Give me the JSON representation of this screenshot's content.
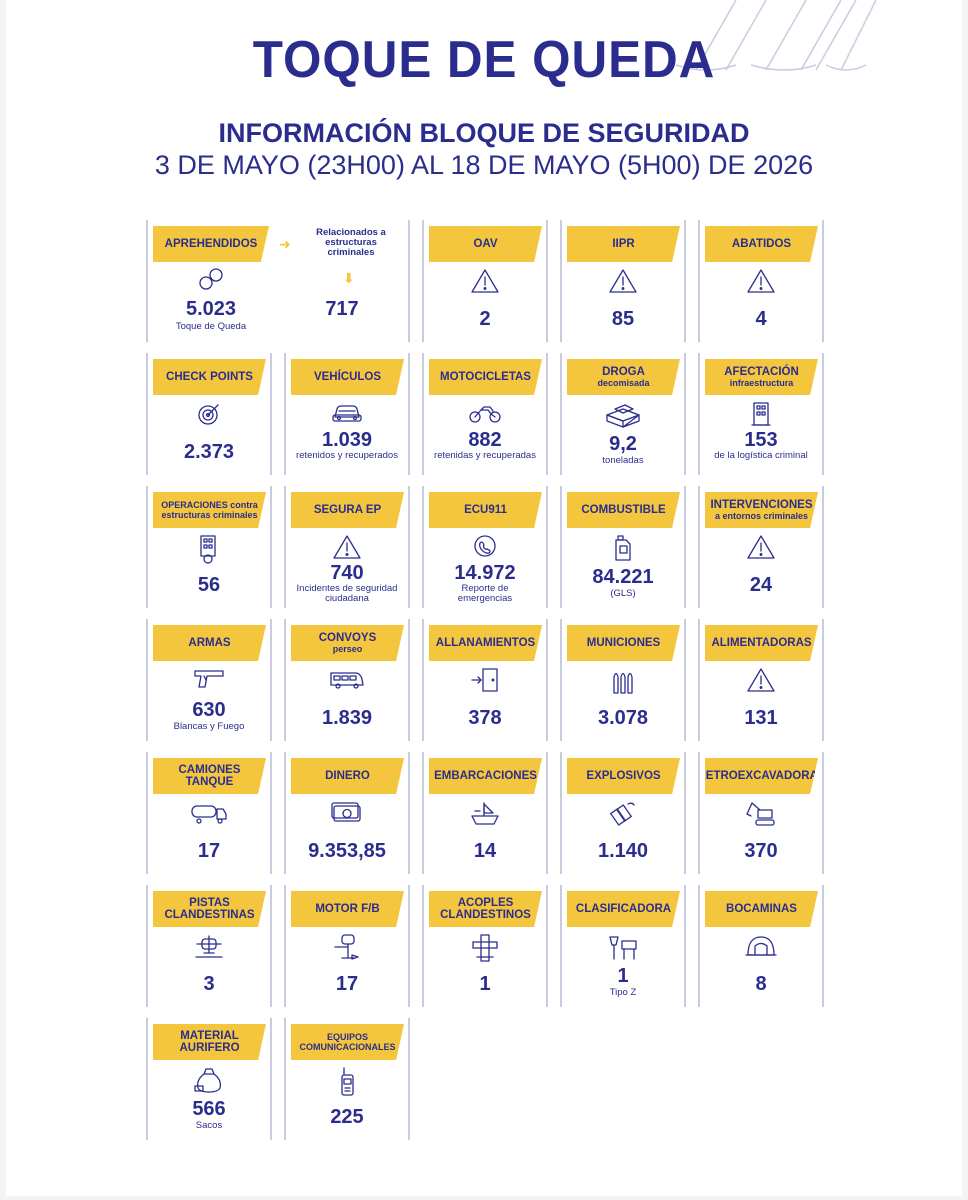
{
  "header": {
    "title": "TOQUE DE QUEDA",
    "subtitle": "INFORMACIÓN BLOQUE DE SEGURIDAD",
    "date_range": "3 DE MAYO (23H00) AL 18 DE MAYO (5H00) DE 2026"
  },
  "colors": {
    "accent": "#f4c63d",
    "primary": "#2b2d8e",
    "border": "#c9cbe0"
  },
  "aprehendidos": {
    "label": "APREHENDIDOS",
    "value": "5.023",
    "caption": "Toque de Queda",
    "related_label": "Relacionados a estructuras criminales",
    "related_value": "717",
    "icon": "handcuffs-icon"
  },
  "cards": [
    {
      "label": "OAV",
      "sub": "",
      "value": "2",
      "caption": "",
      "icon": "warning-icon"
    },
    {
      "label": "IIPR",
      "sub": "",
      "value": "85",
      "caption": "",
      "icon": "warning-icon"
    },
    {
      "label": "ABATIDOS",
      "sub": "",
      "value": "4",
      "caption": "",
      "icon": "warning-icon"
    },
    {
      "label": "CHECK POINTS",
      "sub": "",
      "value": "2.373",
      "caption": "",
      "icon": "target-icon"
    },
    {
      "label": "VEHÍCULOS",
      "sub": "",
      "value": "1.039",
      "caption": "retenidos y recuperados",
      "icon": "car-icon"
    },
    {
      "label": "MOTOCICLETAS",
      "sub": "",
      "value": "882",
      "caption": "retenidas y recuperadas",
      "icon": "motorcycle-icon"
    },
    {
      "label": "DROGA",
      "sub": "decomisada",
      "value": "9,2",
      "caption": "toneladas",
      "icon": "drug-packages-icon"
    },
    {
      "label": "AFECTACIÓN",
      "sub": "infraestructura",
      "value": "153",
      "caption": "de la logística criminal",
      "icon": "building-icon"
    },
    {
      "label": "OPERACIONES contra estructuras criminales",
      "sub": "",
      "value": "56",
      "caption": "",
      "icon": "building-gear-icon"
    },
    {
      "label": "SEGURA EP",
      "sub": "",
      "value": "740",
      "caption": "Incidentes de seguridad ciudadana",
      "icon": "warning-icon"
    },
    {
      "label": "ECU911",
      "sub": "",
      "value": "14.972",
      "caption": "Reporte de emergencias",
      "icon": "emergency-call-icon"
    },
    {
      "label": "COMBUSTIBLE",
      "sub": "",
      "value": "84.221",
      "caption": "(GLS)",
      "icon": "fuel-can-icon"
    },
    {
      "label": "INTERVENCIONES",
      "sub": "a entornos criminales",
      "value": "24",
      "caption": "",
      "icon": "warning-icon"
    },
    {
      "label": "ARMAS",
      "sub": "",
      "value": "630",
      "caption": "Blancas y Fuego",
      "icon": "gun-icon"
    },
    {
      "label": "CONVOYS",
      "sub": "perseo",
      "value": "1.839",
      "caption": "",
      "icon": "van-icon"
    },
    {
      "label": "ALLANAMIENTOS",
      "sub": "",
      "value": "378",
      "caption": "",
      "icon": "door-entry-icon"
    },
    {
      "label": "MUNICIONES",
      "sub": "",
      "value": "3.078",
      "caption": "",
      "icon": "bullets-icon"
    },
    {
      "label": "ALIMENTADORAS",
      "sub": "",
      "value": "131",
      "caption": "",
      "icon": "warning-icon"
    },
    {
      "label": "CAMIONES TANQUE",
      "sub": "",
      "value": "17",
      "caption": "",
      "icon": "tanker-truck-icon"
    },
    {
      "label": "DINERO",
      "sub": "",
      "value": "9.353,85",
      "caption": "",
      "icon": "money-icon"
    },
    {
      "label": "EMBARCACIONES",
      "sub": "",
      "value": "14",
      "caption": "",
      "icon": "boat-icon"
    },
    {
      "label": "EXPLOSIVOS",
      "sub": "",
      "value": "1.140",
      "caption": "",
      "icon": "explosive-icon"
    },
    {
      "label": "RETROEXCAVADORAS",
      "sub": "",
      "value": "370",
      "caption": "",
      "icon": "excavator-icon"
    },
    {
      "label": "PISTAS CLANDESTINAS",
      "sub": "",
      "value": "3",
      "caption": "",
      "icon": "airstrip-icon"
    },
    {
      "label": "MOTOR F/B",
      "sub": "",
      "value": "17",
      "caption": "",
      "icon": "outboard-motor-icon"
    },
    {
      "label": "ACOPLES CLANDESTINOS",
      "sub": "",
      "value": "1",
      "caption": "",
      "icon": "pipe-coupling-icon"
    },
    {
      "label": "CLASIFICADORA",
      "sub": "",
      "value": "1",
      "caption": "Tipo Z",
      "icon": "sorting-machine-icon"
    },
    {
      "label": "BOCAMINAS",
      "sub": "",
      "value": "8",
      "caption": "",
      "icon": "mine-entrance-icon"
    },
    {
      "label": "MATERIAL AURIFERO",
      "sub": "",
      "value": "566",
      "caption": "Sacos",
      "icon": "gold-sack-icon"
    },
    {
      "label": "EQUIPOS COMUNICACIONALES",
      "sub": "",
      "value": "225",
      "caption": "",
      "icon": "radio-icon"
    }
  ]
}
